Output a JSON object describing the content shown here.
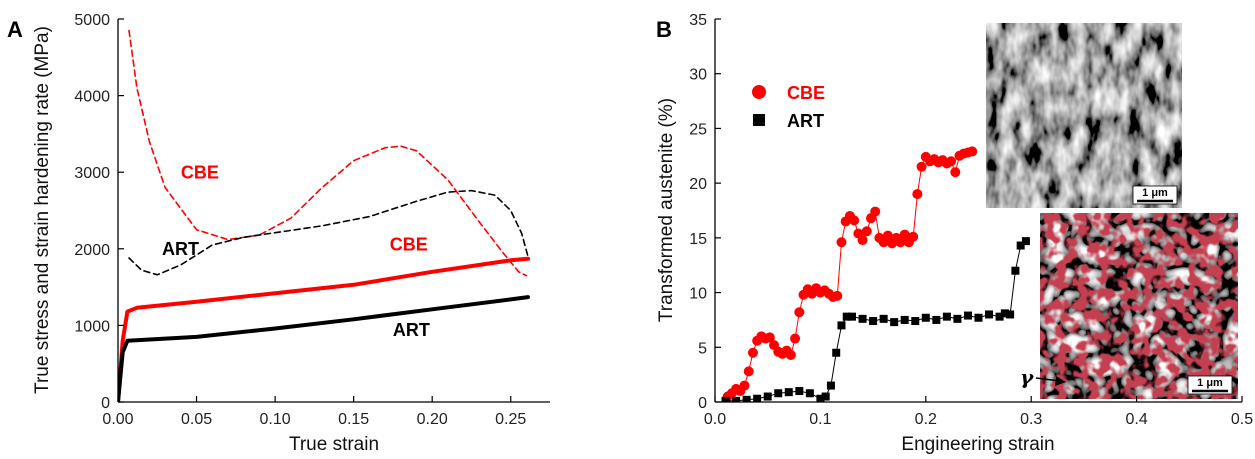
{
  "chart_data": [
    {
      "panel": "A",
      "type": "line",
      "xlabel": "True strain",
      "ylabel": "True stress and strain hardening rate (MPa)",
      "xlim": [
        0.0,
        0.275
      ],
      "ylim": [
        0,
        5000
      ],
      "xticks": [
        "0.00",
        "0.05",
        "0.10",
        "0.15",
        "0.20",
        "0.25"
      ],
      "yticks": [
        "0",
        "1000",
        "2000",
        "3000",
        "4000",
        "5000"
      ],
      "grid": false,
      "series": [
        {
          "name": "CBE",
          "style": "solid-thick",
          "color": "#ff0000",
          "x": [
            0.0,
            0.003,
            0.006,
            0.012,
            0.05,
            0.1,
            0.15,
            0.2,
            0.25,
            0.261
          ],
          "y": [
            0,
            800,
            1180,
            1230,
            1310,
            1420,
            1530,
            1700,
            1850,
            1870
          ]
        },
        {
          "name": "ART",
          "style": "solid-thick",
          "color": "#000000",
          "x": [
            0.0,
            0.003,
            0.006,
            0.05,
            0.1,
            0.15,
            0.2,
            0.25,
            0.261
          ],
          "y": [
            0,
            650,
            800,
            850,
            960,
            1080,
            1210,
            1340,
            1370
          ]
        },
        {
          "name": "CBE",
          "style": "dashed",
          "color": "#ff0000",
          "x": [
            0.007,
            0.012,
            0.02,
            0.03,
            0.05,
            0.07,
            0.09,
            0.11,
            0.13,
            0.15,
            0.17,
            0.18,
            0.19,
            0.21,
            0.23,
            0.245,
            0.255,
            0.26
          ],
          "y": [
            4850,
            4100,
            3400,
            2800,
            2250,
            2120,
            2180,
            2400,
            2800,
            3150,
            3320,
            3340,
            3280,
            2900,
            2350,
            1950,
            1700,
            1650
          ]
        },
        {
          "name": "ART",
          "style": "dashed",
          "color": "#000000",
          "x": [
            0.007,
            0.015,
            0.025,
            0.04,
            0.06,
            0.08,
            0.1,
            0.13,
            0.16,
            0.19,
            0.21,
            0.225,
            0.24,
            0.25,
            0.257,
            0.261
          ],
          "y": [
            1880,
            1720,
            1660,
            1790,
            2050,
            2150,
            2210,
            2300,
            2420,
            2620,
            2740,
            2760,
            2700,
            2500,
            2200,
            1900
          ]
        }
      ],
      "annotations": [
        {
          "text": "CBE",
          "color": "#ff0000",
          "x": 0.04,
          "y": 2920
        },
        {
          "text": "ART",
          "color": "#000000",
          "x": 0.028,
          "y": 1920
        },
        {
          "text": "CBE",
          "color": "#ff0000",
          "x": 0.173,
          "y": 1980
        },
        {
          "text": "ART",
          "color": "#000000",
          "x": 0.175,
          "y": 860
        }
      ]
    },
    {
      "panel": "B",
      "type": "scatter",
      "xlabel": "Engineering strain",
      "ylabel": "Transformed austenite (%)",
      "xlim": [
        0.0,
        0.5
      ],
      "ylim": [
        0,
        35
      ],
      "xticks": [
        "0.0",
        "0.1",
        "0.2",
        "0.3",
        "0.4",
        "0.5"
      ],
      "yticks": [
        "0",
        "5",
        "10",
        "15",
        "20",
        "25",
        "30",
        "35"
      ],
      "grid": false,
      "legend_position": "upper-left",
      "series": [
        {
          "name": "CBE",
          "marker": "circle",
          "color": "#ff0000",
          "x": [
            0.012,
            0.016,
            0.02,
            0.024,
            0.028,
            0.032,
            0.036,
            0.04,
            0.044,
            0.048,
            0.052,
            0.056,
            0.06,
            0.064,
            0.068,
            0.072,
            0.076,
            0.08,
            0.084,
            0.088,
            0.092,
            0.096,
            0.1,
            0.104,
            0.108,
            0.112,
            0.116,
            0.12,
            0.124,
            0.128,
            0.132,
            0.136,
            0.14,
            0.144,
            0.148,
            0.152,
            0.156,
            0.16,
            0.164,
            0.168,
            0.172,
            0.176,
            0.18,
            0.184,
            0.188,
            0.192,
            0.196,
            0.2,
            0.204,
            0.208,
            0.212,
            0.216,
            0.22,
            0.224,
            0.228,
            0.232,
            0.236,
            0.24,
            0.244
          ],
          "y": [
            0.5,
            0.8,
            1.2,
            1.0,
            1.5,
            2.8,
            4.5,
            5.6,
            6.0,
            5.8,
            5.9,
            5.2,
            4.6,
            4.4,
            4.7,
            4.3,
            5.8,
            8.2,
            9.8,
            10.3,
            9.9,
            10.4,
            10.0,
            10.2,
            9.9,
            9.6,
            9.7,
            14.6,
            16.5,
            17.0,
            16.6,
            15.4,
            14.8,
            15.6,
            16.8,
            17.4,
            15.0,
            14.6,
            15.2,
            14.5,
            15.0,
            14.6,
            15.3,
            14.6,
            15.1,
            19.0,
            21.5,
            22.4,
            22.0,
            22.2,
            21.9,
            22.1,
            21.8,
            22.0,
            21.0,
            22.5,
            22.7,
            22.8,
            22.9
          ]
        },
        {
          "name": "ART",
          "marker": "square",
          "color": "#000000",
          "x": [
            0.01,
            0.02,
            0.03,
            0.04,
            0.05,
            0.06,
            0.07,
            0.08,
            0.09,
            0.1,
            0.105,
            0.11,
            0.115,
            0.12,
            0.125,
            0.13,
            0.14,
            0.15,
            0.16,
            0.17,
            0.18,
            0.19,
            0.2,
            0.21,
            0.22,
            0.23,
            0.24,
            0.25,
            0.26,
            0.27,
            0.275,
            0.28,
            0.285,
            0.29,
            0.295
          ],
          "y": [
            0.1,
            0.1,
            0.2,
            0.3,
            0.5,
            0.8,
            0.9,
            1.0,
            0.8,
            0.3,
            0.5,
            1.5,
            4.5,
            7.0,
            7.8,
            7.8,
            7.6,
            7.4,
            7.6,
            7.3,
            7.5,
            7.4,
            7.7,
            7.5,
            7.8,
            7.6,
            7.9,
            7.7,
            8.0,
            7.8,
            8.1,
            8.0,
            12.0,
            14.3,
            14.7
          ]
        }
      ],
      "insets": [
        {
          "scale_label": "1 μm",
          "kind": "grayscale-micrograph"
        },
        {
          "scale_label": "1 μm",
          "kind": "micrograph-with-red-phase",
          "phase_label": "γ"
        }
      ]
    }
  ]
}
